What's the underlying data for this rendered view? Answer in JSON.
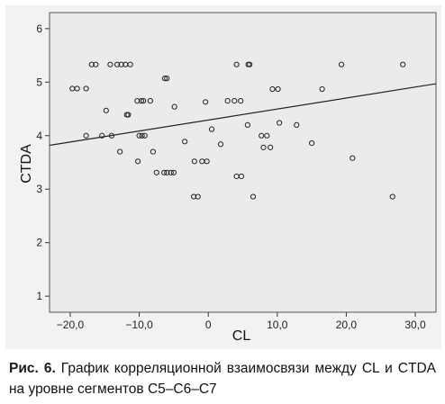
{
  "caption": {
    "label": "Рис. 6.",
    "text": " График корреляционной взаимосвязи между CL и CTDA на уровне сегментов C5–C6–C7"
  },
  "chart_data": {
    "type": "scatter",
    "xlabel": "CL",
    "ylabel": "CTDA",
    "xlim": [
      -23,
      33
    ],
    "ylim": [
      0.7,
      6.3
    ],
    "xticks": [
      -20,
      -10,
      0,
      10,
      20,
      30
    ],
    "xtick_labels": [
      "−20,0",
      "−10,0",
      "0",
      "10,0",
      "20,0",
      "30,0"
    ],
    "yticks": [
      1,
      2,
      3,
      4,
      5,
      6
    ],
    "ytick_labels": [
      "1",
      "2",
      "3",
      "4",
      "5",
      "6"
    ],
    "grid": false,
    "colors": {
      "plot_bg": "#ebebeb",
      "frame": "#f2f2f2",
      "marker": "#222222",
      "line": "#222222"
    },
    "fit_line": {
      "x": [
        -23,
        33
      ],
      "y": [
        3.82,
        4.97
      ]
    },
    "points": [
      {
        "x": -19.7,
        "y": 4.88
      },
      {
        "x": -19.0,
        "y": 4.88
      },
      {
        "x": -17.7,
        "y": 4.88
      },
      {
        "x": -16.9,
        "y": 5.33
      },
      {
        "x": -16.3,
        "y": 5.33
      },
      {
        "x": -14.8,
        "y": 4.47
      },
      {
        "x": -14.2,
        "y": 5.33
      },
      {
        "x": -13.2,
        "y": 5.33
      },
      {
        "x": -12.6,
        "y": 5.33
      },
      {
        "x": -12.0,
        "y": 5.33
      },
      {
        "x": -11.3,
        "y": 5.33
      },
      {
        "x": -11.8,
        "y": 4.39
      },
      {
        "x": -11.6,
        "y": 4.39
      },
      {
        "x": -10.3,
        "y": 4.65
      },
      {
        "x": -9.7,
        "y": 4.65
      },
      {
        "x": -9.4,
        "y": 4.65
      },
      {
        "x": -8.4,
        "y": 4.65
      },
      {
        "x": -6.3,
        "y": 5.07
      },
      {
        "x": -6.0,
        "y": 5.07
      },
      {
        "x": -4.9,
        "y": 4.54
      },
      {
        "x": -17.7,
        "y": 4.0
      },
      {
        "x": -15.4,
        "y": 4.0
      },
      {
        "x": -14.0,
        "y": 4.0
      },
      {
        "x": -10.0,
        "y": 4.0
      },
      {
        "x": -9.6,
        "y": 4.0
      },
      {
        "x": -9.2,
        "y": 4.0
      },
      {
        "x": -12.8,
        "y": 3.7
      },
      {
        "x": -10.2,
        "y": 3.52
      },
      {
        "x": -8.0,
        "y": 3.7
      },
      {
        "x": -7.5,
        "y": 3.31
      },
      {
        "x": -6.4,
        "y": 3.31
      },
      {
        "x": -6.0,
        "y": 3.31
      },
      {
        "x": -5.4,
        "y": 3.31
      },
      {
        "x": -5.0,
        "y": 3.31
      },
      {
        "x": -3.4,
        "y": 3.89
      },
      {
        "x": -2.0,
        "y": 3.52
      },
      {
        "x": -0.9,
        "y": 3.52
      },
      {
        "x": -0.2,
        "y": 3.52
      },
      {
        "x": -2.1,
        "y": 2.86
      },
      {
        "x": -1.5,
        "y": 2.86
      },
      {
        "x": -0.4,
        "y": 4.63
      },
      {
        "x": 0.5,
        "y": 4.12
      },
      {
        "x": 1.8,
        "y": 3.84
      },
      {
        "x": 2.8,
        "y": 4.65
      },
      {
        "x": 3.8,
        "y": 4.65
      },
      {
        "x": 4.7,
        "y": 4.65
      },
      {
        "x": 4.1,
        "y": 5.33
      },
      {
        "x": 5.8,
        "y": 5.33
      },
      {
        "x": 6.0,
        "y": 5.33
      },
      {
        "x": 5.7,
        "y": 4.2
      },
      {
        "x": 4.1,
        "y": 3.24
      },
      {
        "x": 4.8,
        "y": 3.24
      },
      {
        "x": 6.5,
        "y": 2.86
      },
      {
        "x": 7.7,
        "y": 4.0
      },
      {
        "x": 8.5,
        "y": 4.0
      },
      {
        "x": 8.0,
        "y": 3.78
      },
      {
        "x": 9.0,
        "y": 3.78
      },
      {
        "x": 9.3,
        "y": 4.87
      },
      {
        "x": 10.1,
        "y": 4.87
      },
      {
        "x": 10.3,
        "y": 4.24
      },
      {
        "x": 12.8,
        "y": 4.2
      },
      {
        "x": 15.0,
        "y": 3.86
      },
      {
        "x": 16.5,
        "y": 4.87
      },
      {
        "x": 19.3,
        "y": 5.33
      },
      {
        "x": 20.9,
        "y": 3.58
      },
      {
        "x": 26.7,
        "y": 2.86
      },
      {
        "x": 28.2,
        "y": 5.33
      }
    ]
  }
}
